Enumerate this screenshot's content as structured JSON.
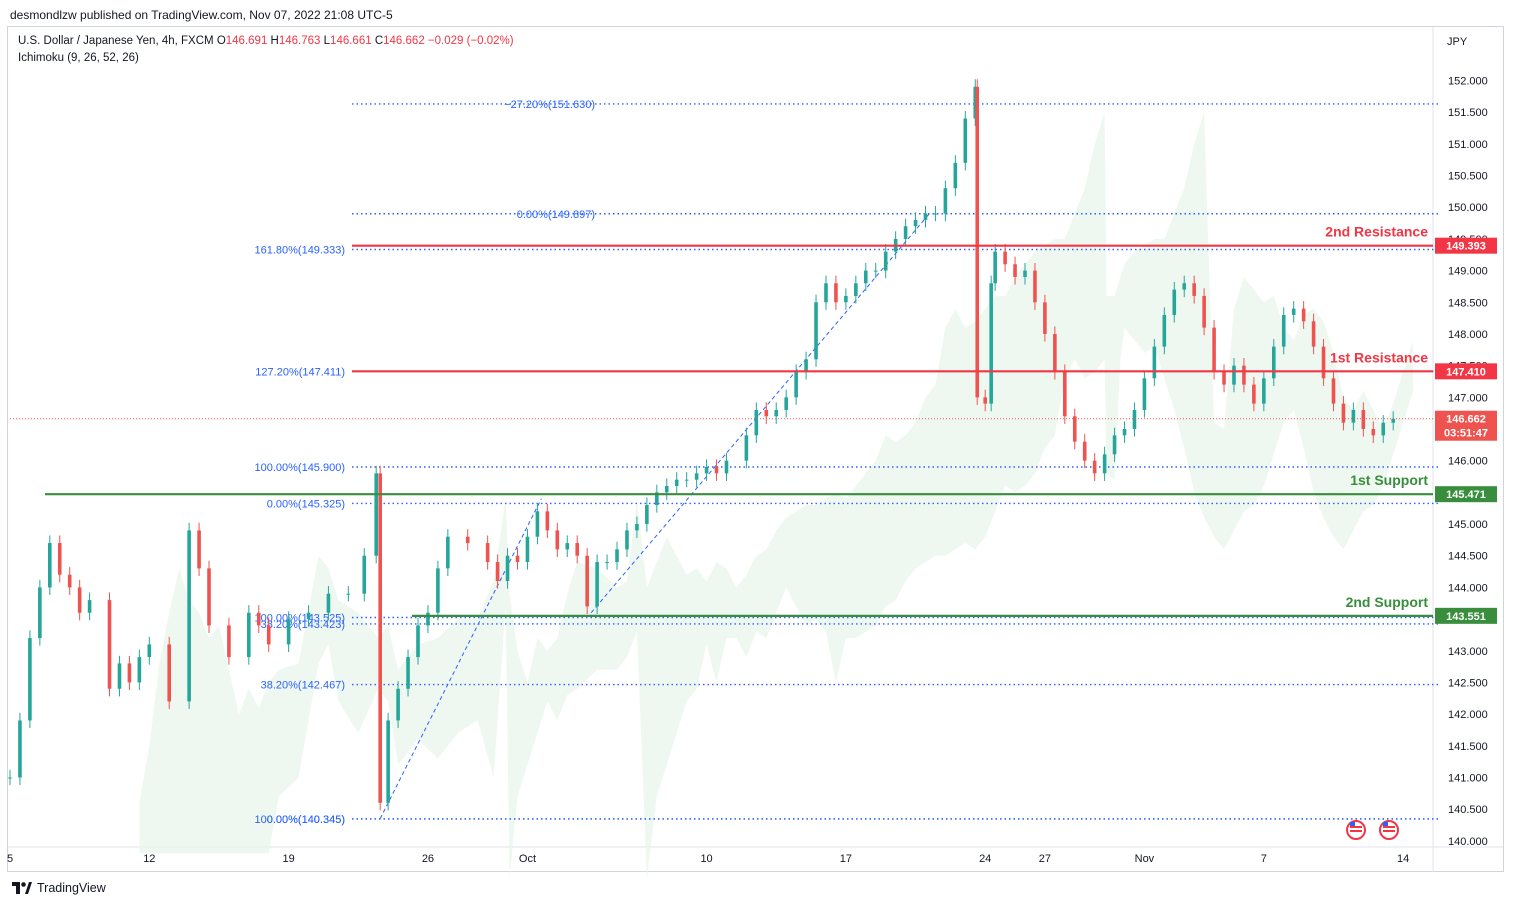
{
  "publisher": "desmondlzw published on TradingView.com, Nov 07, 2022 21:08 UTC-5",
  "header": {
    "symbol": "U.S. Dollar / Japanese Yen, 4h, FXCM",
    "o_label": "O",
    "o": "146.691",
    "h_label": "H",
    "h": "146.763",
    "l_label": "L",
    "l": "146.661",
    "c_label": "C",
    "c": "146.662",
    "change": "−0.029 (−0.02%)",
    "indicator": "Ichimoku (9, 26, 52, 26)"
  },
  "footer": {
    "brand": "TradingView"
  },
  "colors": {
    "resistance": "#f23645",
    "support": "#388e3c",
    "fib": "#2962ff",
    "up": "#26a69a",
    "down": "#ef5350"
  },
  "chart_data": {
    "type": "line",
    "ylabel": "JPY",
    "ylim": [
      139.95,
      152.45
    ],
    "y_ticks": [
      "152.000",
      "151.500",
      "151.000",
      "150.500",
      "150.000",
      "149.500",
      "149.000",
      "148.500",
      "148.000",
      "147.500",
      "147.000",
      "146.500",
      "146.000",
      "145.500",
      "145.000",
      "144.500",
      "144.000",
      "143.500",
      "143.000",
      "142.500",
      "142.000",
      "141.500",
      "141.000",
      "140.500",
      "140.000"
    ],
    "x_ticks": [
      "5",
      "12",
      "19",
      "26",
      "Oct",
      "10",
      "17",
      "24",
      "27",
      "Nov",
      "7",
      "14"
    ],
    "x_tick_days": [
      5,
      12,
      19,
      26,
      31,
      40,
      47,
      54,
      57,
      62,
      68,
      75
    ],
    "x_range_days": [
      5,
      76.5
    ],
    "price": [
      [
        5,
        141.0
      ],
      [
        5.5,
        141.9
      ],
      [
        6,
        143.2
      ],
      [
        6.5,
        144.0
      ],
      [
        7,
        144.7
      ],
      [
        7.5,
        144.2
      ],
      [
        8,
        144.0
      ],
      [
        8.5,
        143.6
      ],
      [
        9,
        143.8
      ],
      [
        10,
        142.4
      ],
      [
        10.5,
        142.8
      ],
      [
        11,
        142.5
      ],
      [
        11.5,
        142.9
      ],
      [
        12,
        143.1
      ],
      [
        13,
        142.2
      ],
      [
        14,
        144.9
      ],
      [
        14.5,
        144.3
      ],
      [
        15,
        143.4
      ],
      [
        16,
        142.9
      ],
      [
        17,
        143.6
      ],
      [
        17.5,
        143.4
      ],
      [
        18,
        143.1
      ],
      [
        19,
        143.5
      ],
      [
        20,
        143.6
      ],
      [
        21,
        143.9
      ],
      [
        22,
        143.9
      ],
      [
        22.8,
        144.5
      ],
      [
        23.4,
        145.8
      ],
      [
        23.6,
        140.6
      ],
      [
        24,
        141.9
      ],
      [
        24.5,
        142.4
      ],
      [
        25,
        142.9
      ],
      [
        25.5,
        143.4
      ],
      [
        26,
        143.6
      ],
      [
        26.5,
        144.3
      ],
      [
        27,
        144.8
      ],
      [
        28,
        144.7
      ],
      [
        29,
        144.4
      ],
      [
        29.5,
        144.1
      ],
      [
        30,
        144.5
      ],
      [
        30.5,
        144.4
      ],
      [
        31,
        144.8
      ],
      [
        31.5,
        145.2
      ],
      [
        32,
        144.9
      ],
      [
        32.5,
        144.6
      ],
      [
        33,
        144.7
      ],
      [
        33.5,
        144.5
      ],
      [
        34,
        143.7
      ],
      [
        34.5,
        144.4
      ],
      [
        35,
        144.4
      ],
      [
        35.5,
        144.6
      ],
      [
        36,
        144.9
      ],
      [
        36.5,
        145.0
      ],
      [
        37,
        145.3
      ],
      [
        37.5,
        145.5
      ],
      [
        38,
        145.6
      ],
      [
        38.5,
        145.7
      ],
      [
        39,
        145.7
      ],
      [
        39.5,
        145.8
      ],
      [
        40,
        145.9
      ],
      [
        40.5,
        145.8
      ],
      [
        41,
        146.0
      ],
      [
        42,
        146.4
      ],
      [
        42.5,
        146.8
      ],
      [
        43,
        146.7
      ],
      [
        43.5,
        146.8
      ],
      [
        44,
        147.0
      ],
      [
        44.5,
        147.4
      ],
      [
        45,
        147.6
      ],
      [
        45.5,
        148.5
      ],
      [
        46,
        148.8
      ],
      [
        46.5,
        148.5
      ],
      [
        47,
        148.6
      ],
      [
        47.5,
        148.8
      ],
      [
        48,
        149.0
      ],
      [
        48.5,
        149.0
      ],
      [
        49,
        149.3
      ],
      [
        49.5,
        149.5
      ],
      [
        50,
        149.7
      ],
      [
        50.5,
        149.8
      ],
      [
        51,
        149.9
      ],
      [
        51.5,
        149.9
      ],
      [
        52,
        150.3
      ],
      [
        52.5,
        150.7
      ],
      [
        53,
        151.4
      ],
      [
        53.5,
        151.9
      ],
      [
        53.6,
        147.0
      ],
      [
        54,
        146.9
      ],
      [
        54.3,
        148.8
      ],
      [
        54.5,
        149.3
      ],
      [
        55,
        149.1
      ],
      [
        55.5,
        148.9
      ],
      [
        56,
        149.0
      ],
      [
        56.5,
        148.5
      ],
      [
        57,
        148.0
      ],
      [
        57.5,
        147.4
      ],
      [
        58,
        146.7
      ],
      [
        58.5,
        146.3
      ],
      [
        59,
        146.0
      ],
      [
        59.5,
        145.8
      ],
      [
        60,
        146.1
      ],
      [
        60.5,
        146.4
      ],
      [
        61,
        146.5
      ],
      [
        61.5,
        146.8
      ],
      [
        62,
        147.3
      ],
      [
        62.5,
        147.8
      ],
      [
        63,
        148.3
      ],
      [
        63.5,
        148.7
      ],
      [
        64,
        148.8
      ],
      [
        64.5,
        148.6
      ],
      [
        65,
        148.1
      ],
      [
        65.5,
        147.4
      ],
      [
        66,
        147.2
      ],
      [
        66.5,
        147.5
      ],
      [
        67,
        147.2
      ],
      [
        67.5,
        146.9
      ],
      [
        68,
        147.3
      ],
      [
        68.5,
        147.8
      ],
      [
        69,
        148.3
      ],
      [
        69.5,
        148.4
      ],
      [
        70,
        148.2
      ],
      [
        70.5,
        147.8
      ],
      [
        71,
        147.3
      ],
      [
        71.5,
        146.9
      ],
      [
        72,
        146.6
      ],
      [
        72.5,
        146.8
      ],
      [
        73,
        146.5
      ],
      [
        73.5,
        146.4
      ],
      [
        74,
        146.6
      ],
      [
        74.5,
        146.66
      ]
    ],
    "levels": [
      {
        "label": "2nd Resistance",
        "value": "149.393",
        "kind": "resistance"
      },
      {
        "label": "1st Resistance",
        "value": "147.410",
        "kind": "resistance"
      },
      {
        "label": "1st Support",
        "value": "145.471",
        "kind": "support"
      },
      {
        "label": "2nd Support",
        "value": "143.551",
        "kind": "support"
      }
    ],
    "fib_lines": [
      {
        "label": "−27.20%(151.630)",
        "value": 151.63
      },
      {
        "label": "0.00%(149.897)",
        "value": 149.897
      },
      {
        "label": "161.80%(149.333)",
        "value": 149.333
      },
      {
        "label": "127.20%(147.411)",
        "value": 147.411
      },
      {
        "label": "100.00%(145.900)",
        "value": 145.9
      },
      {
        "label": "0.00%(145.325)",
        "value": 145.325
      },
      {
        "label": "38.20%(143.423)",
        "value": 143.423
      },
      {
        "label": "100.00%(143.525)",
        "value": 143.525
      },
      {
        "label": "38.20%(142.467)",
        "value": 142.467
      },
      {
        "label": "100.00%(140.345)",
        "value": 140.345
      },
      {
        "label": "0.00%(140.345)",
        "value": 140.345
      }
    ],
    "last_price": "146.662",
    "countdown": "03:51:47"
  }
}
